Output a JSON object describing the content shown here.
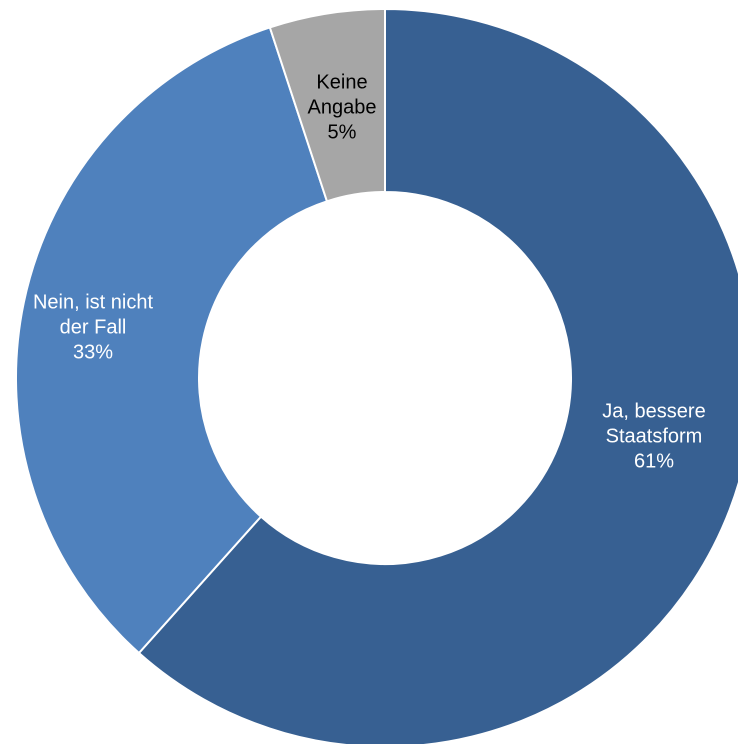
{
  "chart_data": {
    "type": "pie",
    "variant": "donut",
    "categories": [
      "Ja, bessere Staatsform",
      "Nein, ist nicht der Fall",
      "Keine Angabe"
    ],
    "values": [
      61,
      33,
      5
    ],
    "labels": [
      {
        "lines": [
          "Ja, bessere",
          "Staatsform",
          "61%"
        ],
        "color": "#ffffff"
      },
      {
        "lines": [
          "Nein, ist nicht",
          "der Fall",
          "33%"
        ],
        "color": "#ffffff"
      },
      {
        "lines": [
          "Keine",
          "Angabe",
          "5%"
        ],
        "color": "#000000"
      }
    ],
    "colors": [
      "#376092",
      "#4f81bd",
      "#a6a6a6"
    ],
    "slice_border_color": "#ffffff",
    "start": "12 o'clock",
    "direction": "clockwise",
    "legend": "none",
    "title": ""
  }
}
